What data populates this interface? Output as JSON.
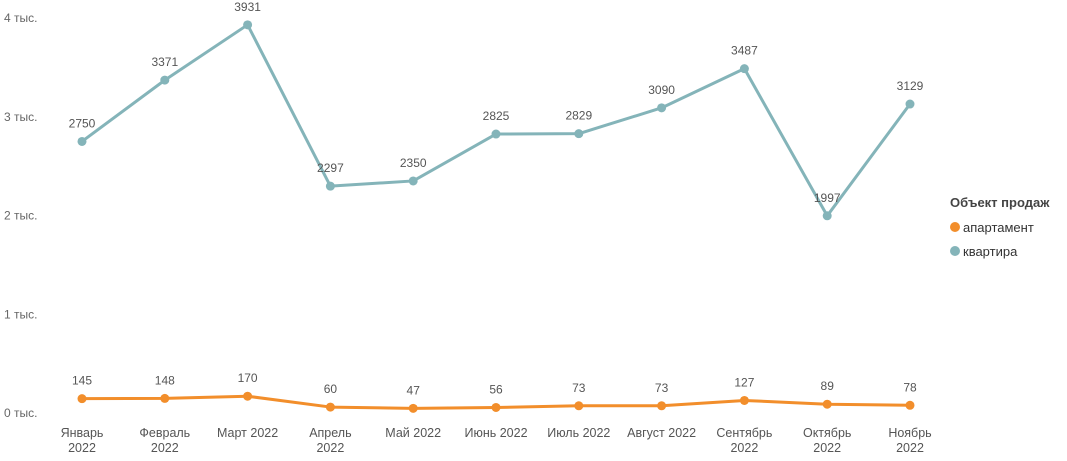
{
  "chart_data": {
    "type": "line",
    "categories": [
      [
        "Январь",
        "2022"
      ],
      [
        "Февраль",
        "2022"
      ],
      [
        "Март 2022"
      ],
      [
        "Апрель",
        "2022"
      ],
      [
        "Май 2022"
      ],
      [
        "Июнь 2022"
      ],
      [
        "Июль 2022"
      ],
      [
        "Август 2022"
      ],
      [
        "Сентябрь",
        "2022"
      ],
      [
        "Октябрь",
        "2022"
      ],
      [
        "Ноябрь",
        "2022"
      ]
    ],
    "series": [
      {
        "name": "апартамент",
        "color": "#F28E2B",
        "values": [
          145,
          148,
          170,
          60,
          47,
          56,
          73,
          73,
          127,
          89,
          78
        ]
      },
      {
        "name": "квартира",
        "color": "#84B4B9",
        "values": [
          2750,
          3371,
          3931,
          2297,
          2350,
          2825,
          2829,
          3090,
          3487,
          1997,
          3129
        ]
      }
    ],
    "ylim": [
      0,
      4000
    ],
    "yticks": [
      {
        "value": 0,
        "label": "0 тыс."
      },
      {
        "value": 1000,
        "label": "1 тыс."
      },
      {
        "value": 2000,
        "label": "2 тыс."
      },
      {
        "value": 3000,
        "label": "3 тыс."
      },
      {
        "value": 4000,
        "label": "4 тыс."
      }
    ],
    "grid": false,
    "legend": {
      "title": "Объект продаж",
      "placement": "right"
    }
  }
}
